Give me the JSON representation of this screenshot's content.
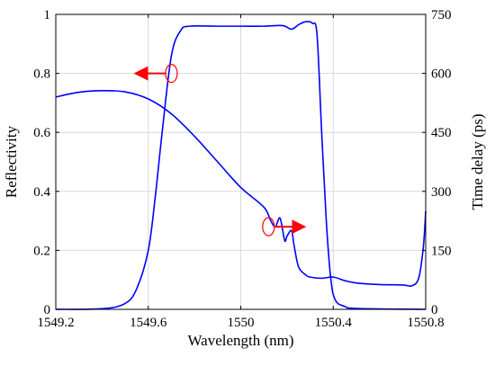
{
  "chart_data": {
    "type": "line",
    "xlabel": "Wavelength (nm)",
    "ylabel_left": "Reflectivity",
    "ylabel_right": "Time delay (ps)",
    "xlim": [
      1549.2,
      1550.8
    ],
    "ylim_left": [
      0,
      1
    ],
    "ylim_right": [
      0,
      750
    ],
    "x_ticks": [
      "1549.2",
      "1549.6",
      "1550",
      "1550.4",
      "1550.8"
    ],
    "y_left_ticks": [
      "0",
      "0.2",
      "0.4",
      "0.6",
      "0.8",
      "1"
    ],
    "y_right_ticks": [
      "0",
      "150",
      "300",
      "450",
      "600",
      "750"
    ],
    "grid": true,
    "line_color": "#0000ff",
    "annotation_color": "#ff0000",
    "series": [
      {
        "axis": "left",
        "x": [
          1549.2,
          1549.4,
          1549.5,
          1549.55,
          1549.6,
          1549.63,
          1549.66,
          1549.7,
          1549.74,
          1549.78,
          1549.9,
          1550.0,
          1550.1,
          1550.18,
          1550.22,
          1550.25,
          1550.28,
          1550.31,
          1550.33,
          1550.35,
          1550.37,
          1550.39,
          1550.41,
          1550.45,
          1550.5,
          1550.8
        ],
        "y": [
          0.0,
          0.002,
          0.02,
          0.07,
          0.2,
          0.38,
          0.6,
          0.86,
          0.945,
          0.96,
          0.96,
          0.96,
          0.96,
          0.962,
          0.95,
          0.965,
          0.975,
          0.97,
          0.93,
          0.6,
          0.3,
          0.1,
          0.03,
          0.01,
          0.003,
          0.0
        ]
      },
      {
        "axis": "right",
        "x": [
          1549.2,
          1549.3,
          1549.4,
          1549.5,
          1549.6,
          1549.7,
          1549.8,
          1549.9,
          1550.0,
          1550.1,
          1550.13,
          1550.15,
          1550.17,
          1550.19,
          1550.2,
          1550.22,
          1550.23,
          1550.25,
          1550.28,
          1550.3,
          1550.35,
          1550.4,
          1550.45,
          1550.5,
          1550.6,
          1550.7,
          1550.74,
          1550.77,
          1550.79,
          1550.8
        ],
        "y": [
          540,
          552,
          556,
          553,
          535,
          497,
          440,
          375,
          310,
          260,
          225,
          210,
          232,
          175,
          186,
          200,
          165,
          108,
          88,
          82,
          79,
          82,
          73,
          67,
          63,
          62,
          60,
          80,
          160,
          250
        ]
      }
    ],
    "annotations": [
      {
        "label": "left-axis arrow",
        "target": "Reflectivity",
        "x": 1549.7,
        "y_left": 0.8
      },
      {
        "label": "right-axis arrow",
        "target": "Time delay",
        "x": 1550.12,
        "y_left": 0.28
      }
    ]
  }
}
